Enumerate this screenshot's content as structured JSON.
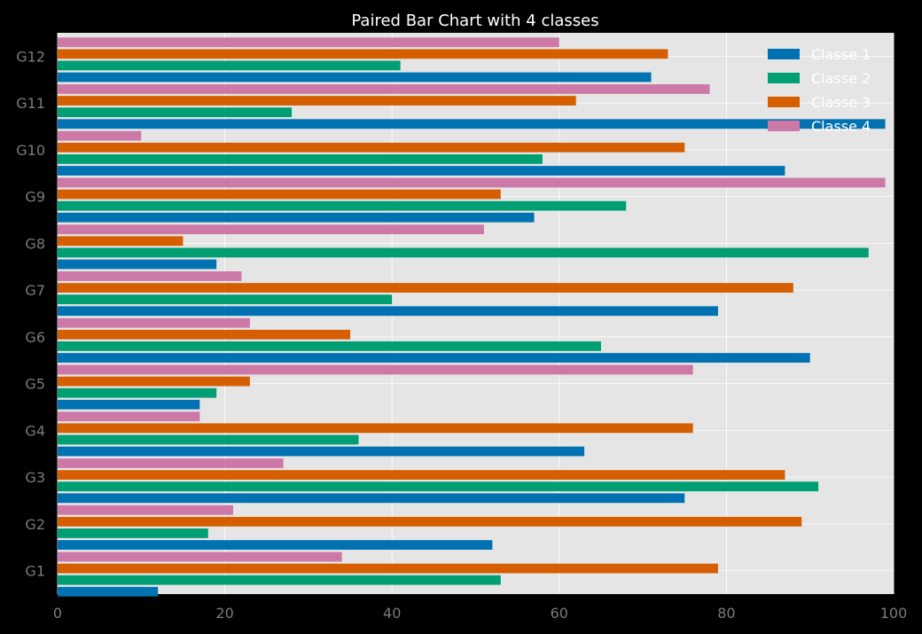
{
  "chart_data": {
    "type": "bar",
    "orientation": "horizontal",
    "title": "Paired Bar Chart with 4 classes",
    "xlabel": "",
    "ylabel": "",
    "xlim": [
      0,
      100
    ],
    "xticks": [
      "0",
      "20",
      "40",
      "60",
      "80",
      "100"
    ],
    "categories": [
      "G1",
      "G2",
      "G3",
      "G4",
      "G5",
      "G6",
      "G7",
      "G8",
      "G9",
      "G10",
      "G11",
      "G12"
    ],
    "series": [
      {
        "name": "Classe 1",
        "color": "#0072b2",
        "values": [
          12,
          52,
          75,
          63,
          17,
          90,
          79,
          19,
          57,
          87,
          99,
          71
        ]
      },
      {
        "name": "Classe 2",
        "color": "#009e73",
        "values": [
          53,
          18,
          91,
          36,
          19,
          65,
          40,
          97,
          68,
          58,
          28,
          41
        ]
      },
      {
        "name": "Classe 3",
        "color": "#d55e00",
        "values": [
          79,
          89,
          87,
          76,
          23,
          35,
          88,
          15,
          53,
          75,
          62,
          73
        ]
      },
      {
        "name": "Classe 4",
        "color": "#cc79a7",
        "values": [
          34,
          21,
          27,
          17,
          76,
          23,
          22,
          51,
          99,
          10,
          78,
          60
        ]
      }
    ],
    "grid": true,
    "legend_position": "top-right",
    "background": "#e5e5e5",
    "figure_background": "#000000"
  }
}
